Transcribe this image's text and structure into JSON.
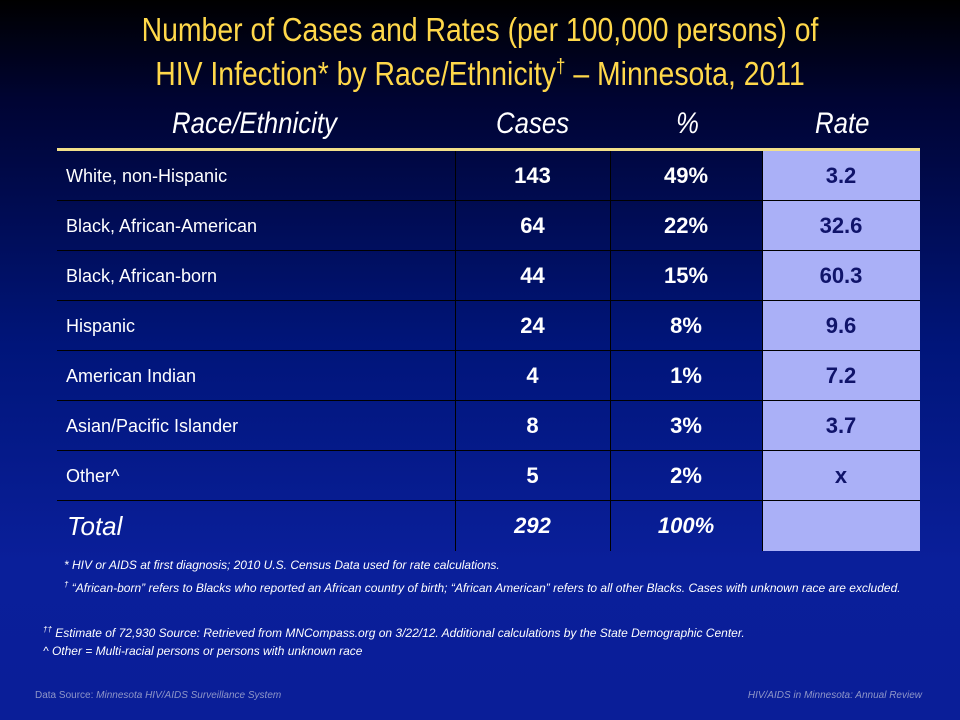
{
  "title": {
    "line1": "Number of Cases and Rates (per 100,000 persons) of",
    "line2_main": "HIV Infection* by Race/Ethnicity",
    "line2_mark": "†",
    "line2_end": " – Minnesota, 2011"
  },
  "headers": {
    "race": "Race/Ethnicity",
    "cases": "Cases",
    "pct": "%",
    "rate": "Rate"
  },
  "rows": [
    {
      "label": "White, non-Hispanic",
      "cases": "143",
      "pct": "49%",
      "rate": "3.2"
    },
    {
      "label": "Black, African-American",
      "cases": "64",
      "pct": "22%",
      "rate": "32.6"
    },
    {
      "label": "Black, African-born",
      "cases": "44",
      "pct": "15%",
      "rate": "60.3"
    },
    {
      "label": "Hispanic",
      "cases": "24",
      "pct": "8%",
      "rate": "9.6"
    },
    {
      "label": "American Indian",
      "cases": "4",
      "pct": "1%",
      "rate": "7.2"
    },
    {
      "label": "Asian/Pacific Islander",
      "cases": "8",
      "pct": "3%",
      "rate": "3.7"
    },
    {
      "label": "Other^",
      "cases": "5",
      "pct": "2%",
      "rate": "x"
    }
  ],
  "total": {
    "label": "Total",
    "cases": "292",
    "pct": "100%",
    "rate": ""
  },
  "footnotes": {
    "fn1": "* HIV or AIDS at first diagnosis; 2010 U.S. Census Data used for rate calculations.",
    "fn2_mark": "†",
    "fn2": " “African-born” refers to Blacks who reported an African country of birth; “African American” refers to all other Blacks.  Cases with unknown race are excluded.",
    "fn3_mark": "††",
    "fn3": " Estimate of 72,930  Source:   Retrieved from MNCompass.org on 3/22/12. Additional calculations by the State Demographic Center.",
    "fn4": "^ Other = Multi-racial persons or persons with unknown race"
  },
  "footer": {
    "source_prefix": "Data Source: ",
    "source": "Minnesota HIV/AIDS Surveillance  System",
    "right": "HIV/AIDS in Minnesota: Annual Review"
  },
  "colors": {
    "title": "#ffd84a",
    "rate_column": "#aab0f7",
    "background": "#0a1f9a"
  }
}
